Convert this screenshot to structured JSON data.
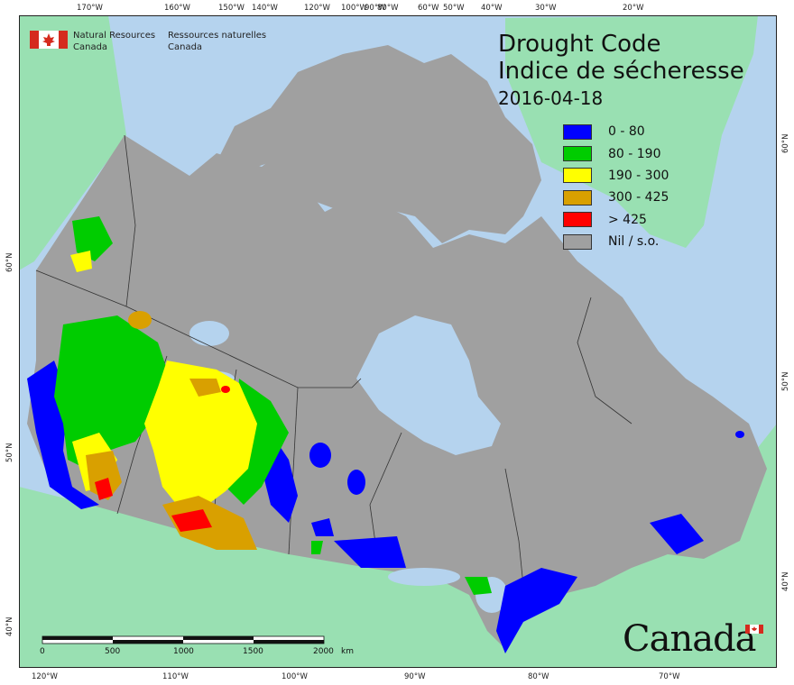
{
  "title_en": "Drought Code",
  "title_fr": "Indice de sécheresse",
  "date": "2016-04-18",
  "agency": {
    "en_line1": "Natural Resources",
    "en_line2": "Canada",
    "fr_line1": "Ressources naturelles",
    "fr_line2": "Canada"
  },
  "wordmark": "Canada",
  "legend": [
    {
      "label": "0 - 80",
      "color": "#0000ff"
    },
    {
      "label": "80 - 190",
      "color": "#00cc00"
    },
    {
      "label": "190 - 300",
      "color": "#ffff00"
    },
    {
      "label": "300 - 425",
      "color": "#d9a000"
    },
    {
      "label": "> 425",
      "color": "#ff0000"
    },
    {
      "label": "Nil / s.o.",
      "color": "#a0a0a0"
    }
  ],
  "colors": {
    "ocean": "#b5d3ee",
    "foreign_land": "#99e0b2",
    "canada_land": "#a0a0a0",
    "lakes": "#b5d3ee"
  },
  "graticule": {
    "top": [
      "170°W",
      "160°W",
      "150°W",
      "140°W",
      "120°W",
      "100°W",
      "90°W",
      "80°W",
      "60°W",
      "50°W",
      "40°W",
      "30°W",
      "20°W"
    ],
    "bottom": [
      "120°W",
      "110°W",
      "100°W",
      "90°W",
      "80°W",
      "70°W"
    ],
    "left": [
      "60°N",
      "50°N",
      "40°N"
    ],
    "right": [
      "60°N",
      "50°N",
      "40°N"
    ]
  },
  "scale_bar": {
    "labels": [
      "0",
      "500",
      "1000",
      "1500",
      "2000"
    ],
    "unit": "km"
  }
}
